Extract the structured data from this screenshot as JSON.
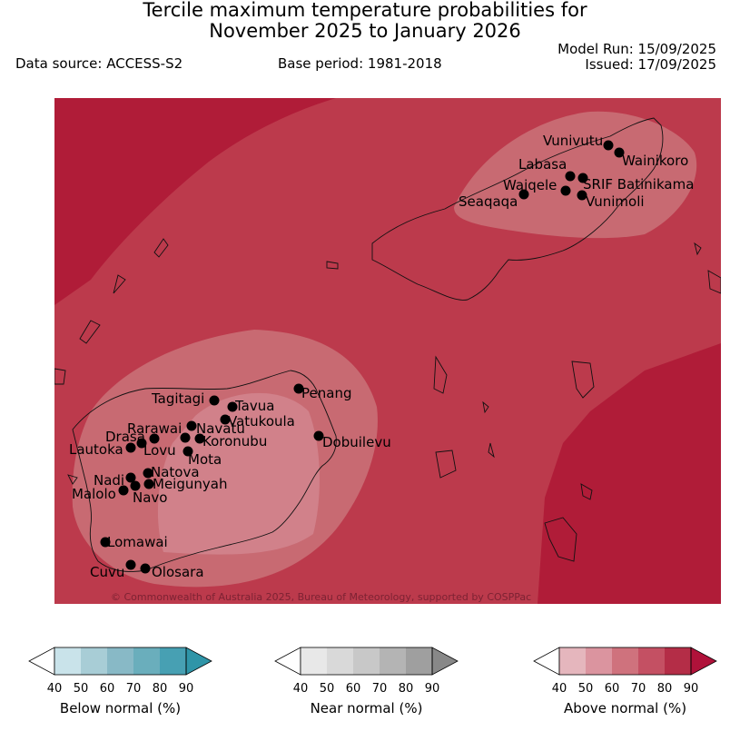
{
  "header": {
    "title_line1": "Tercile maximum temperature probabilities for",
    "title_line2": "November 2025 to January 2026",
    "data_source": "Data source: ACCESS-S2",
    "base_period": "Base period: 1981-2018",
    "model_run": "Model Run: 15/09/2025",
    "issued": "Issued: 17/09/2025"
  },
  "map": {
    "copyright": "© Commonwealth of Australia 2025, Bureau of Meteorology, supported by COSPPac",
    "colors": {
      "prob_50_60": "#d9949e",
      "prob_60_70": "#c86a72",
      "prob_70_80": "#bc3a4c",
      "prob_80_90": "#b01c38"
    },
    "places": [
      {
        "name": "Vunivutu"
      },
      {
        "name": "Wainikoro"
      },
      {
        "name": "Labasa"
      },
      {
        "name": "SRIF Batinikama"
      },
      {
        "name": "Waiqele"
      },
      {
        "name": "Seaqaqa"
      },
      {
        "name": "Vunimoli"
      },
      {
        "name": "Penang"
      },
      {
        "name": "Tagitagi"
      },
      {
        "name": "Tavua"
      },
      {
        "name": "Vatukoula"
      },
      {
        "name": "Rarawai"
      },
      {
        "name": "Navatu"
      },
      {
        "name": "Drasa"
      },
      {
        "name": "Koronubu"
      },
      {
        "name": "Lautoka"
      },
      {
        "name": "Lovu"
      },
      {
        "name": "Mota"
      },
      {
        "name": "Dobuilevu"
      },
      {
        "name": "Natova"
      },
      {
        "name": "Nadi"
      },
      {
        "name": "Meigunyah"
      },
      {
        "name": "Malolo"
      },
      {
        "name": "Navo"
      },
      {
        "name": "Lomawai"
      },
      {
        "name": "Cuvu"
      },
      {
        "name": "Olosara"
      }
    ]
  },
  "colorbars": [
    {
      "title": "Below normal (%)",
      "ticks": [
        "40",
        "50",
        "60",
        "70",
        "80",
        "90"
      ],
      "colors": [
        "#c9e3ea",
        "#a8cdd6",
        "#88b9c6",
        "#6aaebc",
        "#47a0b3"
      ],
      "low_color": "#ffffff",
      "high_color": "#2f95a8"
    },
    {
      "title": "Near normal (%)",
      "ticks": [
        "40",
        "50",
        "60",
        "70",
        "80",
        "90"
      ],
      "colors": [
        "#e8e8e8",
        "#d9d9d9",
        "#c8c8c8",
        "#b4b4b4",
        "#9f9f9f"
      ],
      "low_color": "#ffffff",
      "high_color": "#888888"
    },
    {
      "title": "Above normal (%)",
      "ticks": [
        "40",
        "50",
        "60",
        "70",
        "80",
        "90"
      ],
      "colors": [
        "#e5b6bd",
        "#db949f",
        "#cf727d",
        "#c45063",
        "#b42d47"
      ],
      "low_color": "#ffffff",
      "high_color": "#b0123a"
    }
  ]
}
